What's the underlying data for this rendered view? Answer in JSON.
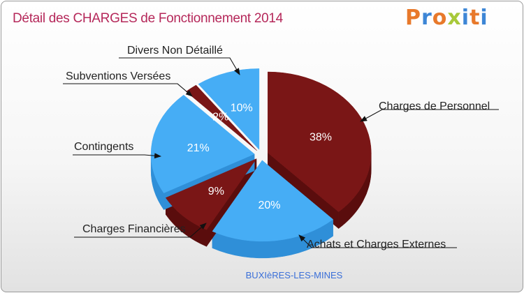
{
  "title": "Détail des CHARGES de Fonctionnement 2014",
  "logo": {
    "text": "Proxiti",
    "colors": [
      "#e8792b",
      "#3d86d6",
      "#e8792b",
      "#a8c93a",
      "#3d86d6",
      "#e8792b",
      "#3d86d6"
    ]
  },
  "colors": {
    "blue": "#46adf5",
    "blue_side": "#2f8fd8",
    "red": "#7a1616",
    "red_side": "#5a0d0d"
  },
  "chart_data": {
    "type": "pie",
    "subtitle": "BUXIèRES-LES-MINES",
    "slices": [
      {
        "name": "Charges de Personnel",
        "value": 38,
        "label": "38%",
        "color": "red"
      },
      {
        "name": "Achats et Charges Externes",
        "value": 20,
        "label": "20%",
        "color": "blue"
      },
      {
        "name": "Charges Financières",
        "value": 9,
        "label": "9%",
        "color": "red"
      },
      {
        "name": "Contingents",
        "value": 21,
        "label": "21%",
        "color": "blue"
      },
      {
        "name": "Subventions Versées",
        "value": 2,
        "label": "2%",
        "color": "red"
      },
      {
        "name": "Divers Non Détaillé",
        "value": 10,
        "label": "10%",
        "color": "blue"
      }
    ]
  }
}
